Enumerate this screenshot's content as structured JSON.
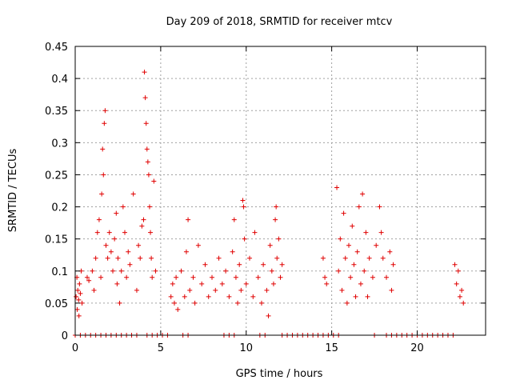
{
  "chart_data": {
    "type": "scatter",
    "title": "Day 209 of 2018, SRMTID for receiver mtcv",
    "xlabel": "GPS time / hours",
    "ylabel": "SRMTID / TECUs",
    "xlim": [
      0,
      24
    ],
    "ylim": [
      0,
      0.45
    ],
    "xticks": [
      0,
      5,
      10,
      15,
      20
    ],
    "xtick_labels": [
      "0",
      "5",
      "10",
      "15",
      "20"
    ],
    "yticks": [
      0,
      0.05,
      0.1,
      0.15,
      0.2,
      0.25,
      0.3,
      0.35,
      0.4,
      0.45
    ],
    "ytick_labels": [
      "0",
      "0.05",
      "0.1",
      "0.15",
      "0.2",
      "0.25",
      "0.3",
      "0.35",
      "0.4",
      "0.45"
    ],
    "grid": true,
    "marker": "+",
    "color": "#e00000",
    "series": [
      {
        "name": "SRMTID",
        "points": [
          [
            0.05,
            0.06
          ],
          [
            0.1,
            0.09
          ],
          [
            0.12,
            0.04
          ],
          [
            0.15,
            0.07
          ],
          [
            0.2,
            0.055
          ],
          [
            0.22,
            0.03
          ],
          [
            0.25,
            0.08
          ],
          [
            0.3,
            0.065
          ],
          [
            0.35,
            0.1
          ],
          [
            0.4,
            0.05
          ],
          [
            0.7,
            0.09
          ],
          [
            0.8,
            0.085
          ],
          [
            1.0,
            0.1
          ],
          [
            1.1,
            0.07
          ],
          [
            1.2,
            0.12
          ],
          [
            1.3,
            0.16
          ],
          [
            1.4,
            0.18
          ],
          [
            1.5,
            0.09
          ],
          [
            1.55,
            0.22
          ],
          [
            1.6,
            0.29
          ],
          [
            1.65,
            0.25
          ],
          [
            1.7,
            0.33
          ],
          [
            1.75,
            0.35
          ],
          [
            1.8,
            0.14
          ],
          [
            1.9,
            0.12
          ],
          [
            2.0,
            0.16
          ],
          [
            2.1,
            0.13
          ],
          [
            2.2,
            0.1
          ],
          [
            2.3,
            0.15
          ],
          [
            2.4,
            0.19
          ],
          [
            2.45,
            0.08
          ],
          [
            2.5,
            0.12
          ],
          [
            2.6,
            0.05
          ],
          [
            2.7,
            0.1
          ],
          [
            2.8,
            0.2
          ],
          [
            2.9,
            0.16
          ],
          [
            3.0,
            0.09
          ],
          [
            3.1,
            0.13
          ],
          [
            3.2,
            0.11
          ],
          [
            3.4,
            0.22
          ],
          [
            3.6,
            0.07
          ],
          [
            3.7,
            0.14
          ],
          [
            3.8,
            0.12
          ],
          [
            3.9,
            0.17
          ],
          [
            4.0,
            0.18
          ],
          [
            4.05,
            0.41
          ],
          [
            4.1,
            0.37
          ],
          [
            4.15,
            0.33
          ],
          [
            4.2,
            0.29
          ],
          [
            4.25,
            0.27
          ],
          [
            4.3,
            0.25
          ],
          [
            4.35,
            0.2
          ],
          [
            4.4,
            0.16
          ],
          [
            4.45,
            0.12
          ],
          [
            4.5,
            0.09
          ],
          [
            4.6,
            0.24
          ],
          [
            4.7,
            0.1
          ],
          [
            5.6,
            0.06
          ],
          [
            5.7,
            0.08
          ],
          [
            5.8,
            0.05
          ],
          [
            5.9,
            0.09
          ],
          [
            6.0,
            0.04
          ],
          [
            6.2,
            0.1
          ],
          [
            6.4,
            0.06
          ],
          [
            6.5,
            0.13
          ],
          [
            6.6,
            0.18
          ],
          [
            6.7,
            0.07
          ],
          [
            6.9,
            0.09
          ],
          [
            7.0,
            0.05
          ],
          [
            7.2,
            0.14
          ],
          [
            7.4,
            0.08
          ],
          [
            7.6,
            0.11
          ],
          [
            7.8,
            0.06
          ],
          [
            8.0,
            0.09
          ],
          [
            8.2,
            0.07
          ],
          [
            8.4,
            0.12
          ],
          [
            8.6,
            0.08
          ],
          [
            8.8,
            0.1
          ],
          [
            9.0,
            0.06
          ],
          [
            9.2,
            0.13
          ],
          [
            9.3,
            0.18
          ],
          [
            9.4,
            0.09
          ],
          [
            9.5,
            0.05
          ],
          [
            9.6,
            0.11
          ],
          [
            9.7,
            0.07
          ],
          [
            9.8,
            0.21
          ],
          [
            9.85,
            0.2
          ],
          [
            9.9,
            0.15
          ],
          [
            10.0,
            0.08
          ],
          [
            10.2,
            0.12
          ],
          [
            10.4,
            0.06
          ],
          [
            10.5,
            0.16
          ],
          [
            10.7,
            0.09
          ],
          [
            10.9,
            0.05
          ],
          [
            11.0,
            0.11
          ],
          [
            11.2,
            0.07
          ],
          [
            11.3,
            0.03
          ],
          [
            11.4,
            0.14
          ],
          [
            11.5,
            0.1
          ],
          [
            11.6,
            0.08
          ],
          [
            11.7,
            0.18
          ],
          [
            11.75,
            0.2
          ],
          [
            11.8,
            0.12
          ],
          [
            11.9,
            0.15
          ],
          [
            12.0,
            0.09
          ],
          [
            12.1,
            0.11
          ],
          [
            14.5,
            0.12
          ],
          [
            14.6,
            0.09
          ],
          [
            14.7,
            0.08
          ],
          [
            15.3,
            0.23
          ],
          [
            15.4,
            0.1
          ],
          [
            15.5,
            0.15
          ],
          [
            15.6,
            0.07
          ],
          [
            15.7,
            0.19
          ],
          [
            15.8,
            0.12
          ],
          [
            15.9,
            0.05
          ],
          [
            16.0,
            0.14
          ],
          [
            16.1,
            0.09
          ],
          [
            16.2,
            0.17
          ],
          [
            16.3,
            0.11
          ],
          [
            16.4,
            0.06
          ],
          [
            16.5,
            0.13
          ],
          [
            16.6,
            0.2
          ],
          [
            16.7,
            0.08
          ],
          [
            16.8,
            0.22
          ],
          [
            16.9,
            0.1
          ],
          [
            17.0,
            0.16
          ],
          [
            17.1,
            0.06
          ],
          [
            17.2,
            0.12
          ],
          [
            17.4,
            0.09
          ],
          [
            17.6,
            0.14
          ],
          [
            17.8,
            0.2
          ],
          [
            17.9,
            0.16
          ],
          [
            18.0,
            0.12
          ],
          [
            18.2,
            0.09
          ],
          [
            18.4,
            0.13
          ],
          [
            18.5,
            0.07
          ],
          [
            18.6,
            0.11
          ],
          [
            22.2,
            0.11
          ],
          [
            22.3,
            0.08
          ],
          [
            22.4,
            0.1
          ],
          [
            22.5,
            0.06
          ],
          [
            22.6,
            0.07
          ],
          [
            22.7,
            0.05
          ],
          [
            0.0,
            0.0
          ],
          [
            0.3,
            0.0
          ],
          [
            0.6,
            0.0
          ],
          [
            0.9,
            0.0
          ],
          [
            1.2,
            0.0
          ],
          [
            1.5,
            0.0
          ],
          [
            1.8,
            0.0
          ],
          [
            2.1,
            0.0
          ],
          [
            2.4,
            0.0
          ],
          [
            2.7,
            0.0
          ],
          [
            3.0,
            0.0
          ],
          [
            3.3,
            0.0
          ],
          [
            3.6,
            0.0
          ],
          [
            4.2,
            0.0
          ],
          [
            4.5,
            0.0
          ],
          [
            4.8,
            0.0
          ],
          [
            5.1,
            0.0
          ],
          [
            5.4,
            0.0
          ],
          [
            6.3,
            0.0
          ],
          [
            6.6,
            0.0
          ],
          [
            8.7,
            0.0
          ],
          [
            9.0,
            0.0
          ],
          [
            9.3,
            0.0
          ],
          [
            10.8,
            0.0
          ],
          [
            11.1,
            0.0
          ],
          [
            12.1,
            0.0
          ],
          [
            12.4,
            0.0
          ],
          [
            12.7,
            0.0
          ],
          [
            13.0,
            0.0
          ],
          [
            13.3,
            0.0
          ],
          [
            13.6,
            0.0
          ],
          [
            13.9,
            0.0
          ],
          [
            14.2,
            0.0
          ],
          [
            14.5,
            0.0
          ],
          [
            14.8,
            0.0
          ],
          [
            15.1,
            0.0
          ],
          [
            15.4,
            0.0
          ],
          [
            17.5,
            0.0
          ],
          [
            18.2,
            0.0
          ],
          [
            18.5,
            0.0
          ],
          [
            18.8,
            0.0
          ],
          [
            19.1,
            0.0
          ],
          [
            19.4,
            0.0
          ],
          [
            19.7,
            0.0
          ],
          [
            20.0,
            0.0
          ],
          [
            20.3,
            0.0
          ],
          [
            20.6,
            0.0
          ],
          [
            20.9,
            0.0
          ],
          [
            21.2,
            0.0
          ],
          [
            21.5,
            0.0
          ],
          [
            21.8,
            0.0
          ],
          [
            22.1,
            0.0
          ]
        ]
      }
    ]
  }
}
